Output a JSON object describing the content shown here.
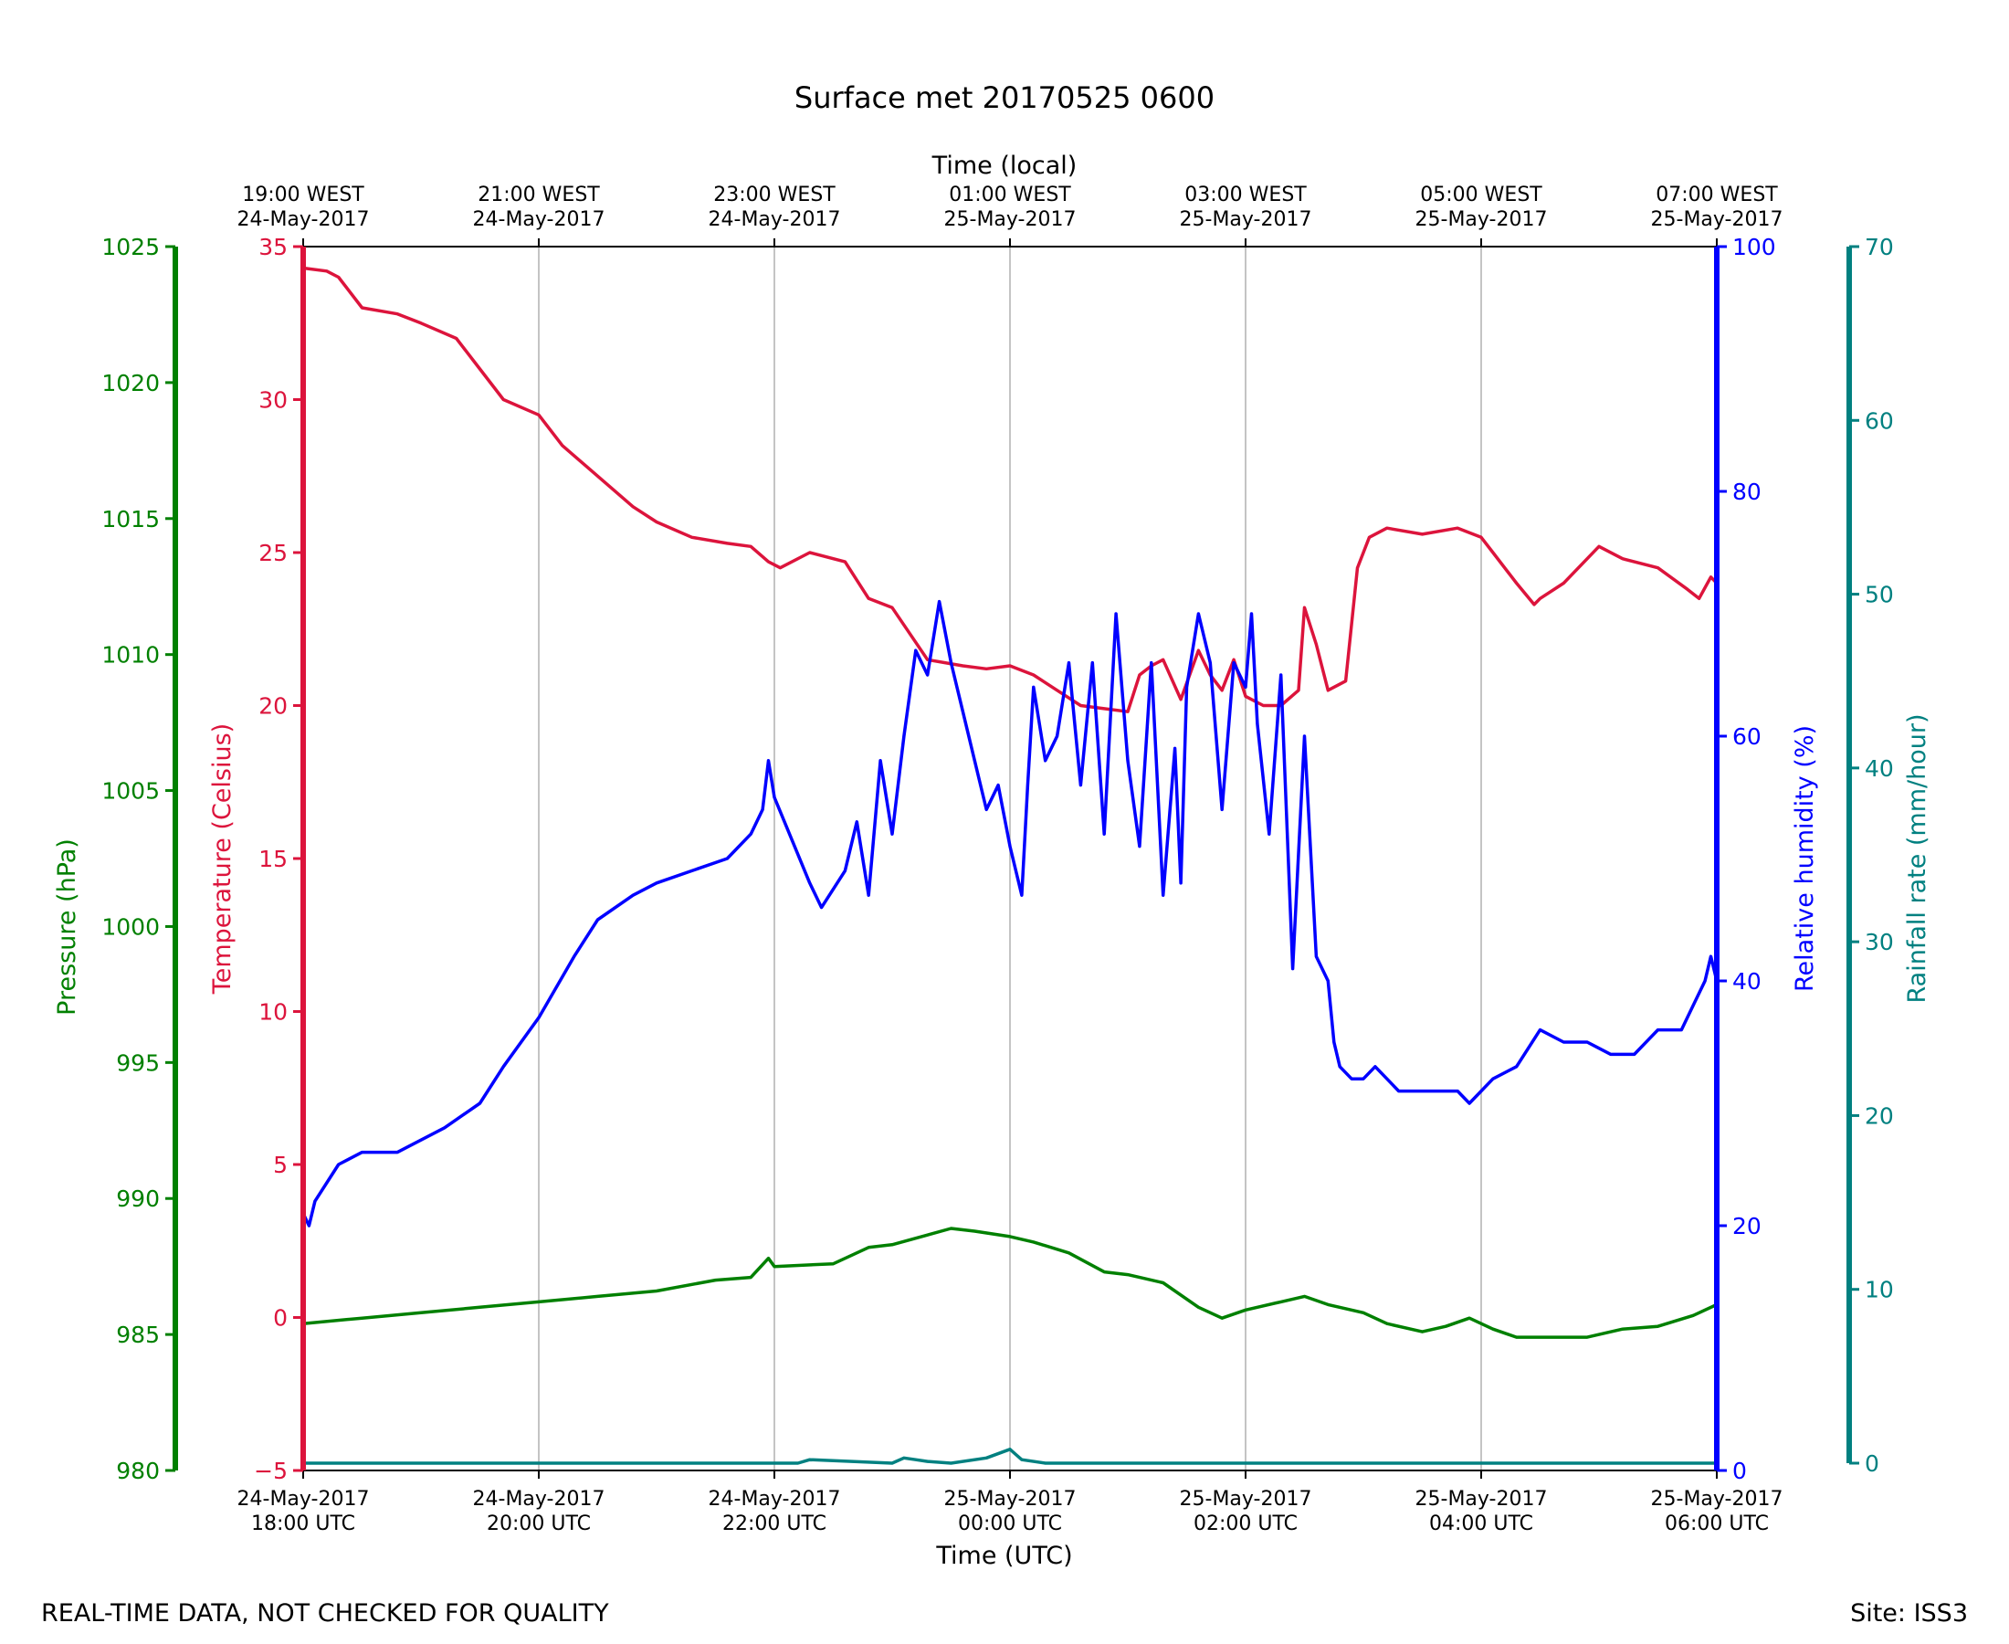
{
  "chart_data": {
    "type": "line",
    "title": "Surface met 20170525 0600",
    "footer_left": "REAL-TIME DATA, NOT CHECKED FOR QUALITY",
    "footer_right": "Site: ISS3",
    "top_axis": {
      "label": "Time (local)",
      "ticks": [
        {
          "h": 0,
          "l1": "19:00 WEST",
          "l2": "24-May-2017"
        },
        {
          "h": 2,
          "l1": "21:00 WEST",
          "l2": "24-May-2017"
        },
        {
          "h": 4,
          "l1": "23:00 WEST",
          "l2": "24-May-2017"
        },
        {
          "h": 6,
          "l1": "01:00 WEST",
          "l2": "25-May-2017"
        },
        {
          "h": 8,
          "l1": "03:00 WEST",
          "l2": "25-May-2017"
        },
        {
          "h": 10,
          "l1": "05:00 WEST",
          "l2": "25-May-2017"
        },
        {
          "h": 12,
          "l1": "07:00 WEST",
          "l2": "25-May-2017"
        }
      ]
    },
    "bottom_axis": {
      "label": "Time (UTC)",
      "xlim": [
        0,
        12
      ],
      "grid": true,
      "ticks": [
        {
          "h": 0,
          "l1": "24-May-2017",
          "l2": "18:00 UTC"
        },
        {
          "h": 2,
          "l1": "24-May-2017",
          "l2": "20:00 UTC"
        },
        {
          "h": 4,
          "l1": "24-May-2017",
          "l2": "22:00 UTC"
        },
        {
          "h": 6,
          "l1": "25-May-2017",
          "l2": "00:00 UTC"
        },
        {
          "h": 8,
          "l1": "25-May-2017",
          "l2": "02:00 UTC"
        },
        {
          "h": 10,
          "l1": "25-May-2017",
          "l2": "04:00 UTC"
        },
        {
          "h": 12,
          "l1": "25-May-2017",
          "l2": "06:00 UTC"
        }
      ]
    },
    "axes": {
      "pressure": {
        "label": "Pressure (hPa)",
        "color": "#008000",
        "ylim": [
          980,
          1025
        ],
        "ticks": [
          980,
          985,
          990,
          995,
          1000,
          1005,
          1010,
          1015,
          1020,
          1025
        ],
        "tick_labels": [
          "980",
          "985",
          "990",
          "995",
          "1000",
          "1005",
          "1010",
          "1015",
          "1020",
          "1025"
        ]
      },
      "temperature": {
        "label": "Temperature (Celsius)",
        "color": "#dc143c",
        "ylim": [
          -5,
          35
        ],
        "ticks": [
          -5,
          0,
          5,
          10,
          15,
          20,
          25,
          30,
          35
        ],
        "tick_labels": [
          "−5",
          "0",
          "5",
          "10",
          "15",
          "20",
          "25",
          "30",
          "35"
        ]
      },
      "humidity": {
        "label": "Relative humidity (%)",
        "color": "#0000ff",
        "ylim": [
          0,
          100
        ],
        "ticks": [
          0,
          20,
          40,
          60,
          80,
          100
        ],
        "tick_labels": [
          "0",
          "20",
          "40",
          "60",
          "80",
          "100"
        ]
      },
      "rainfall": {
        "label": "Rainfall rate (mm/hour)",
        "color": "#008080",
        "ylim": [
          0,
          70
        ],
        "ticks": [
          0,
          10,
          20,
          30,
          40,
          50,
          60,
          70
        ],
        "tick_labels": [
          "0",
          "10",
          "20",
          "30",
          "40",
          "50",
          "60",
          "70"
        ]
      }
    },
    "series": [
      {
        "name": "Temperature",
        "axis": "temperature",
        "color": "#dc143c",
        "x": [
          0,
          0.2,
          0.3,
          0.5,
          0.8,
          1.0,
          1.3,
          1.5,
          1.7,
          2.0,
          2.2,
          2.5,
          2.8,
          3.0,
          3.3,
          3.6,
          3.8,
          3.95,
          4.05,
          4.3,
          4.6,
          4.8,
          5.0,
          5.3,
          5.6,
          5.8,
          6.0,
          6.2,
          6.4,
          6.6,
          6.8,
          7.0,
          7.1,
          7.2,
          7.3,
          7.45,
          7.6,
          7.7,
          7.8,
          7.9,
          8.0,
          8.15,
          8.3,
          8.45,
          8.5,
          8.6,
          8.7,
          8.85,
          8.95,
          9.05,
          9.2,
          9.5,
          9.8,
          10.0,
          10.1,
          10.3,
          10.45,
          10.5,
          10.7,
          11.0,
          11.2,
          11.5,
          11.75,
          11.85,
          11.95,
          12.0
        ],
        "y": [
          34.3,
          34.2,
          34.0,
          33.0,
          32.8,
          32.5,
          32.0,
          31.0,
          30.0,
          29.5,
          28.5,
          27.5,
          26.5,
          26.0,
          25.5,
          25.3,
          25.2,
          24.7,
          24.5,
          25.0,
          24.7,
          23.5,
          23.2,
          21.5,
          21.3,
          21.2,
          21.3,
          21.0,
          20.5,
          20.0,
          19.9,
          19.8,
          21.0,
          21.3,
          21.5,
          20.2,
          21.8,
          21.0,
          20.5,
          21.5,
          20.3,
          20.0,
          20.0,
          20.5,
          23.2,
          22.0,
          20.5,
          20.8,
          24.5,
          25.5,
          25.8,
          25.6,
          25.8,
          25.5,
          25.0,
          24.0,
          23.3,
          23.5,
          24.0,
          25.2,
          24.8,
          24.5,
          23.8,
          23.5,
          24.2,
          24.0
        ]
      },
      {
        "name": "Relative humidity",
        "axis": "humidity",
        "color": "#0000ff",
        "x": [
          0,
          0.05,
          0.1,
          0.3,
          0.5,
          0.8,
          1.0,
          1.2,
          1.5,
          1.7,
          2.0,
          2.3,
          2.5,
          2.8,
          3.0,
          3.3,
          3.6,
          3.8,
          3.9,
          3.95,
          4.0,
          4.3,
          4.4,
          4.6,
          4.7,
          4.8,
          4.9,
          5.0,
          5.1,
          5.2,
          5.3,
          5.4,
          5.5,
          5.6,
          5.7,
          5.8,
          5.9,
          6.0,
          6.1,
          6.15,
          6.2,
          6.3,
          6.4,
          6.5,
          6.55,
          6.6,
          6.7,
          6.8,
          6.9,
          7.0,
          7.1,
          7.2,
          7.3,
          7.4,
          7.45,
          7.5,
          7.6,
          7.7,
          7.8,
          7.9,
          8.0,
          8.05,
          8.1,
          8.2,
          8.3,
          8.4,
          8.5,
          8.6,
          8.7,
          8.75,
          8.8,
          8.9,
          9.0,
          9.1,
          9.3,
          9.5,
          9.7,
          9.8,
          9.9,
          10.0,
          10.1,
          10.3,
          10.5,
          10.7,
          10.9,
          11.1,
          11.3,
          11.5,
          11.7,
          11.8,
          11.9,
          11.95,
          12.0
        ],
        "y": [
          21,
          20,
          22,
          25,
          26,
          26,
          27,
          28,
          30,
          33,
          37,
          42,
          45,
          47,
          48,
          49,
          50,
          52,
          54,
          58,
          55,
          48,
          46,
          49,
          53,
          47,
          58,
          52,
          60,
          67,
          65,
          71,
          66,
          62,
          58,
          54,
          56,
          51,
          47,
          56,
          64,
          58,
          60,
          66,
          61,
          56,
          66,
          52,
          70,
          58,
          51,
          66,
          47,
          59,
          48,
          64,
          70,
          66,
          54,
          66,
          64,
          70,
          61,
          52,
          65,
          41,
          60,
          42,
          40,
          35,
          33,
          32,
          32,
          33,
          31,
          31,
          31,
          31,
          30,
          31,
          32,
          33,
          36,
          35,
          35,
          34,
          34,
          36,
          36,
          38,
          40,
          42,
          40
        ]
      },
      {
        "name": "Pressure",
        "axis": "pressure",
        "color": "#008000",
        "x": [
          0,
          0.5,
          1.0,
          1.5,
          2.0,
          2.5,
          3.0,
          3.5,
          3.8,
          3.95,
          4.0,
          4.5,
          4.8,
          5.0,
          5.5,
          5.7,
          6.0,
          6.2,
          6.5,
          6.8,
          7.0,
          7.3,
          7.6,
          7.8,
          8.0,
          8.3,
          8.5,
          8.7,
          9.0,
          9.2,
          9.5,
          9.7,
          9.9,
          10.1,
          10.3,
          10.5,
          10.9,
          11.2,
          11.5,
          11.8,
          12.0
        ],
        "y": [
          985.4,
          985.6,
          985.8,
          986.0,
          986.2,
          986.4,
          986.6,
          987.0,
          987.1,
          987.8,
          987.5,
          987.6,
          988.2,
          988.3,
          988.9,
          988.8,
          988.6,
          988.4,
          988.0,
          987.3,
          987.2,
          986.9,
          986.0,
          985.6,
          985.9,
          986.2,
          986.4,
          986.1,
          985.8,
          985.4,
          985.1,
          985.3,
          985.6,
          985.2,
          984.9,
          984.9,
          984.9,
          985.2,
          985.3,
          985.7,
          986.1
        ]
      },
      {
        "name": "Rainfall rate",
        "axis": "rainfall",
        "color": "#008080",
        "x": [
          0,
          3.5,
          4.2,
          4.3,
          5.0,
          5.1,
          5.2,
          5.3,
          5.5,
          5.8,
          6.0,
          6.05,
          6.1,
          6.3,
          8.0,
          12.0
        ],
        "y": [
          0,
          0,
          0,
          0.2,
          0,
          0.3,
          0.2,
          0.1,
          0,
          0.3,
          0.8,
          0.5,
          0.2,
          0,
          0,
          0
        ]
      }
    ]
  }
}
